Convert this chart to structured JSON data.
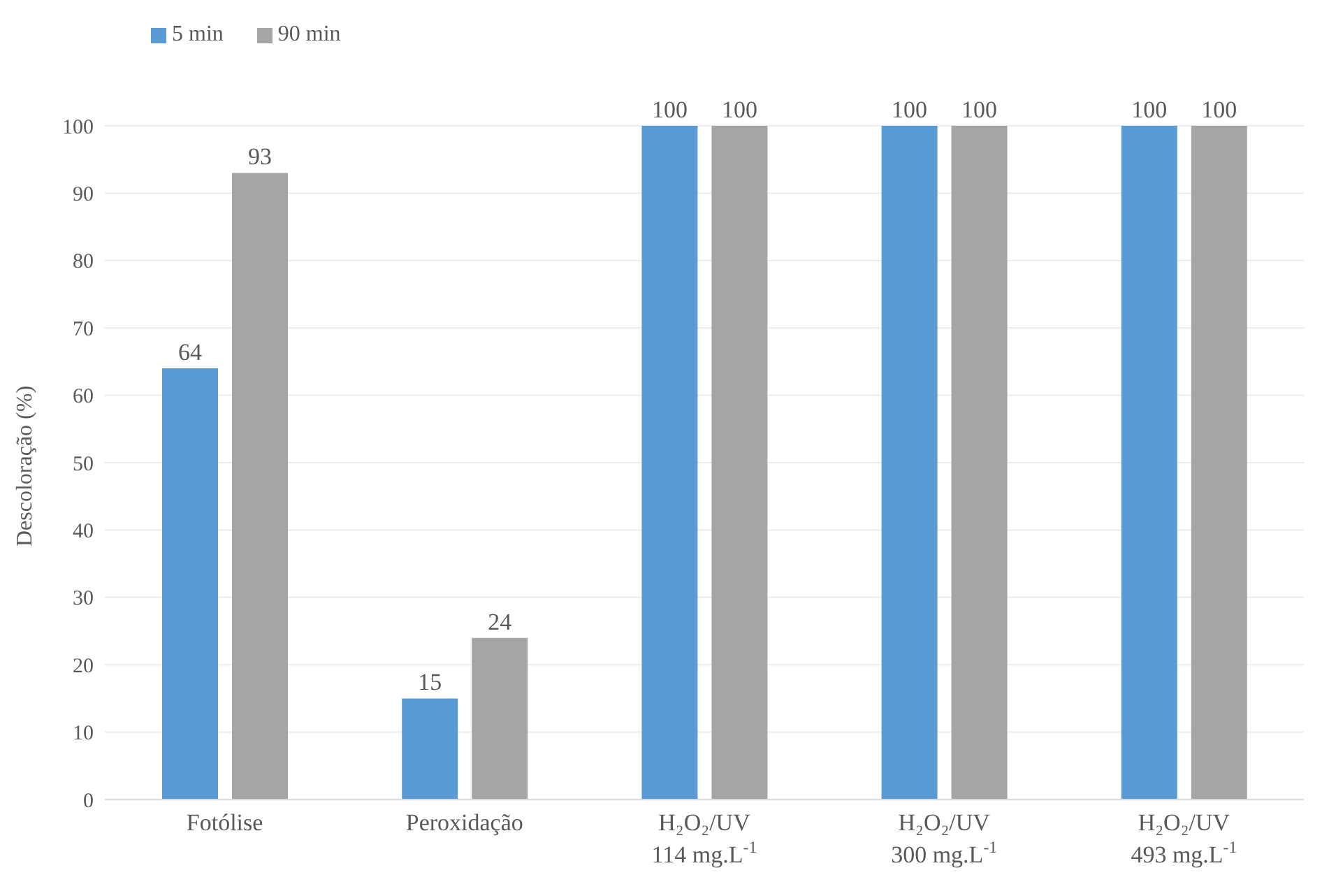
{
  "chart_data": {
    "type": "bar",
    "categories": [
      "Fotólise",
      "Peroxidação",
      "H₂O₂/UV\n114 mg.L$^{-1}$",
      "H₂O₂/UV\n300 mg.L$^{-1}$",
      "H₂O₂/UV\n493 mg.L$^{-1}$"
    ],
    "series": [
      {
        "name": "5 min",
        "color": "#5b9bd5",
        "values": [
          64,
          15,
          100,
          100,
          100
        ]
      },
      {
        "name": "90 min",
        "color": "#a5a5a5",
        "values": [
          93,
          24,
          100,
          100,
          100
        ]
      }
    ],
    "ylabel": "Descoloração (%)",
    "ylim": [
      0,
      100
    ],
    "yticks": [
      0,
      10,
      20,
      30,
      40,
      50,
      60,
      70,
      80,
      90,
      100
    ],
    "grid": "y",
    "legend": "top left",
    "data_labels": true
  }
}
